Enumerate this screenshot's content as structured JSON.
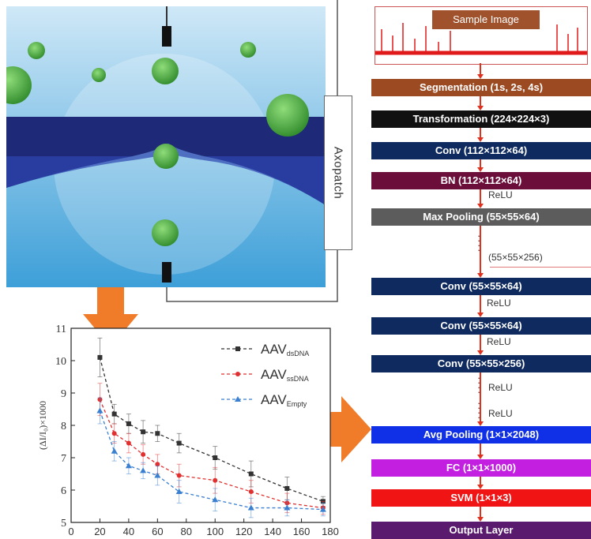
{
  "axopatch": {
    "label": "Axopatch"
  },
  "pipeline": {
    "sample": "Sample Image",
    "steps": [
      {
        "label": "Segmentation (1s, 2s, 4s)",
        "color": "#9c4a22"
      },
      {
        "label": "Transformation (224×224×3)",
        "color": "#111111"
      },
      {
        "label": "Conv (112×112×64)",
        "color": "#0e2a5e"
      },
      {
        "label": "BN (112×112×64)",
        "color": "#6b0f3a"
      },
      {
        "label": "Max Pooling (55×55×64)",
        "color": "#5c5c5c"
      },
      {
        "label": "Conv (55×55×64)",
        "color": "#0e2a5e"
      },
      {
        "label": "Conv (55×55×64)",
        "color": "#0e2a5e"
      },
      {
        "label": "Conv (55×55×256)",
        "color": "#0e2a5e"
      },
      {
        "label": "Avg Pooling (1×1×2048)",
        "color": "#1030e8"
      },
      {
        "label": "FC (1×1×1000)",
        "color": "#c21fe0"
      },
      {
        "label": "SVM (1×1×3)",
        "color": "#f01414"
      },
      {
        "label": "Output Layer",
        "color": "#5a1a6e"
      }
    ],
    "relu": "ReLU",
    "side_label": "(55×55×256)"
  },
  "chart_data": {
    "type": "line",
    "xlabel": "",
    "ylabel": "(ΔI/I₀)×1000",
    "xlim": [
      0,
      180
    ],
    "ylim": [
      5,
      11
    ],
    "xticks": [
      0,
      20,
      40,
      60,
      80,
      100,
      120,
      140,
      160,
      180
    ],
    "yticks": [
      5,
      6,
      7,
      8,
      9,
      10,
      11
    ],
    "legend": "top-right",
    "x": [
      20,
      30,
      40,
      50,
      60,
      75,
      100,
      125,
      150,
      175
    ],
    "series": [
      {
        "name": "AAVdsDNA",
        "base": "AAV",
        "sub": "dsDNA",
        "color": "#333333",
        "marker": "square",
        "values": [
          10.1,
          8.35,
          8.05,
          7.8,
          7.75,
          7.45,
          7.0,
          6.5,
          6.05,
          5.65
        ],
        "errors": [
          0.6,
          0.3,
          0.3,
          0.35,
          0.25,
          0.3,
          0.35,
          0.4,
          0.35,
          0.15
        ]
      },
      {
        "name": "AAVssDNA",
        "base": "AAV",
        "sub": "ssDNA",
        "color": "#e03030",
        "marker": "circle",
        "values": [
          8.8,
          7.75,
          7.45,
          7.1,
          6.8,
          6.45,
          6.3,
          5.95,
          5.6,
          5.45
        ],
        "errors": [
          0.5,
          0.3,
          0.3,
          0.3,
          0.3,
          0.35,
          0.4,
          0.35,
          0.3,
          0.2
        ]
      },
      {
        "name": "AAVEmpty",
        "base": "AAV",
        "sub": "Empty",
        "color": "#3a7fd0",
        "marker": "triangle",
        "values": [
          8.45,
          7.2,
          6.75,
          6.6,
          6.45,
          5.95,
          5.7,
          5.45,
          5.45,
          5.4
        ],
        "errors": [
          0.4,
          0.3,
          0.25,
          0.25,
          0.3,
          0.35,
          0.35,
          0.3,
          0.25,
          0.2
        ]
      }
    ]
  }
}
